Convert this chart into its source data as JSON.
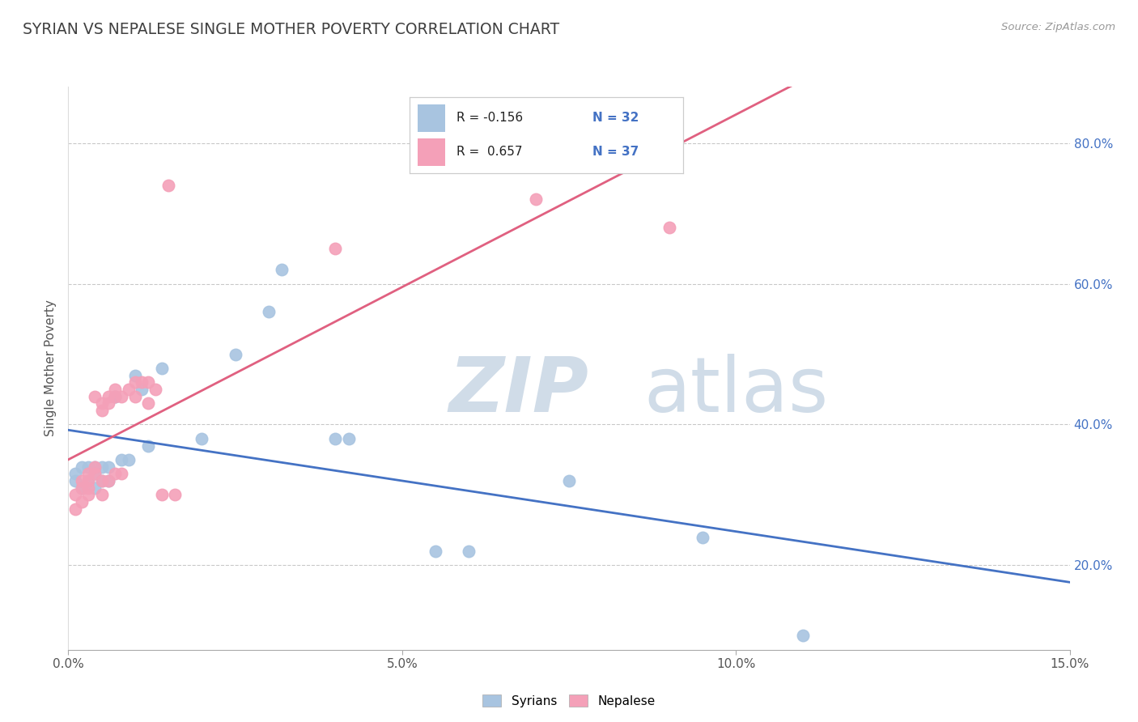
{
  "title": "SYRIAN VS NEPALESE SINGLE MOTHER POVERTY CORRELATION CHART",
  "source": "Source: ZipAtlas.com",
  "ylabel": "Single Mother Poverty",
  "xlim": [
    0.0,
    0.15
  ],
  "ylim": [
    0.08,
    0.88
  ],
  "xticks": [
    0.0,
    0.05,
    0.1,
    0.15
  ],
  "xtick_labels": [
    "0.0%",
    "5.0%",
    "10.0%",
    "15.0%"
  ],
  "yticks": [
    0.2,
    0.4,
    0.6,
    0.8
  ],
  "ytick_labels": [
    "20.0%",
    "40.0%",
    "60.0%",
    "80.0%"
  ],
  "syrian_R": -0.156,
  "syrian_N": 32,
  "nepalese_R": 0.657,
  "nepalese_N": 37,
  "syrian_color": "#a8c4e0",
  "nepalese_color": "#f4a0b8",
  "syrian_line_color": "#4472c4",
  "nepalese_line_color": "#e06080",
  "background_color": "#ffffff",
  "grid_color": "#bbbbbb",
  "watermark_color": "#d0dce8",
  "title_color": "#404040",
  "legend_r_color": "#4472c4",
  "syrians_x": [
    0.001,
    0.001,
    0.002,
    0.002,
    0.003,
    0.003,
    0.004,
    0.004,
    0.004,
    0.005,
    0.005,
    0.006,
    0.006,
    0.007,
    0.007,
    0.008,
    0.009,
    0.01,
    0.011,
    0.012,
    0.014,
    0.02,
    0.025,
    0.03,
    0.032,
    0.04,
    0.042,
    0.055,
    0.06,
    0.075,
    0.095,
    0.11
  ],
  "syrians_y": [
    0.33,
    0.32,
    0.34,
    0.31,
    0.34,
    0.32,
    0.33,
    0.31,
    0.34,
    0.32,
    0.34,
    0.34,
    0.32,
    0.44,
    0.44,
    0.35,
    0.35,
    0.47,
    0.45,
    0.37,
    0.48,
    0.38,
    0.5,
    0.56,
    0.62,
    0.38,
    0.38,
    0.22,
    0.22,
    0.32,
    0.24,
    0.1
  ],
  "nepalese_x": [
    0.001,
    0.001,
    0.002,
    0.002,
    0.002,
    0.003,
    0.003,
    0.003,
    0.003,
    0.004,
    0.004,
    0.004,
    0.005,
    0.005,
    0.005,
    0.005,
    0.006,
    0.006,
    0.006,
    0.007,
    0.007,
    0.007,
    0.008,
    0.008,
    0.009,
    0.01,
    0.01,
    0.011,
    0.012,
    0.012,
    0.013,
    0.014,
    0.015,
    0.016,
    0.04,
    0.07,
    0.09
  ],
  "nepalese_y": [
    0.3,
    0.28,
    0.32,
    0.31,
    0.29,
    0.3,
    0.33,
    0.32,
    0.31,
    0.34,
    0.33,
    0.44,
    0.42,
    0.43,
    0.3,
    0.32,
    0.43,
    0.44,
    0.32,
    0.44,
    0.45,
    0.33,
    0.44,
    0.33,
    0.45,
    0.44,
    0.46,
    0.46,
    0.46,
    0.43,
    0.45,
    0.3,
    0.74,
    0.3,
    0.65,
    0.72,
    0.68
  ]
}
